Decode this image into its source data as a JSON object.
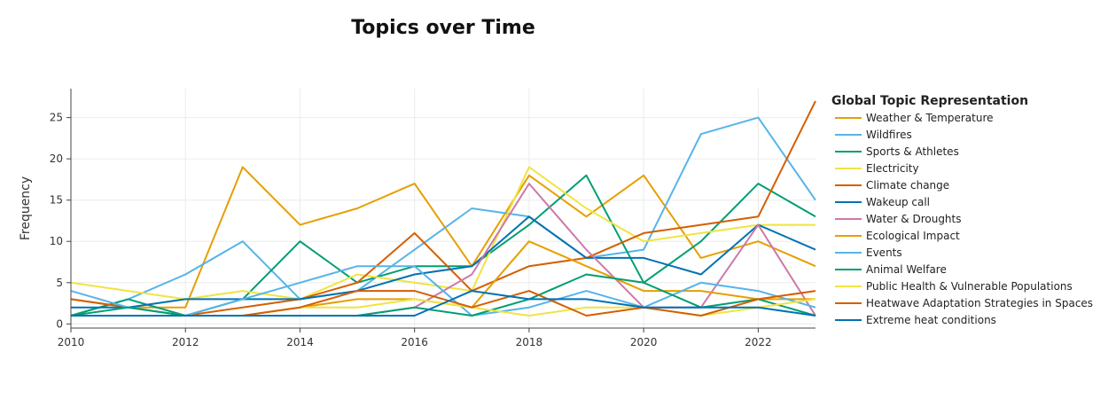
{
  "chart_data": {
    "type": "line",
    "title": "Topics over Time",
    "xlabel": "",
    "ylabel": "Frequency",
    "xlim": [
      2010,
      2023
    ],
    "ylim": [
      -0.5,
      28.5
    ],
    "x_ticks": [
      2010,
      2012,
      2014,
      2016,
      2018,
      2020,
      2022
    ],
    "y_ticks": [
      0,
      5,
      10,
      15,
      20,
      25
    ],
    "grid": true,
    "legend_title": "Global Topic Representation",
    "legend_position": "right",
    "series": [
      {
        "name": "Weather & Temperature",
        "color": "#E69F00",
        "x": [
          2010,
          2011,
          2012,
          2013,
          2014,
          2015,
          2016,
          2017,
          2018,
          2019,
          2020,
          2021,
          2022,
          2023
        ],
        "values": [
          3,
          2,
          2,
          19,
          12,
          14,
          17,
          7,
          18,
          13,
          18,
          8,
          10,
          7
        ]
      },
      {
        "name": "Wildfires",
        "color": "#56B4E9",
        "x": [
          2010,
          2011,
          2012,
          2013,
          2014,
          2015,
          2016,
          2017,
          2018,
          2019,
          2020,
          2021,
          2022,
          2023
        ],
        "values": [
          1,
          3,
          6,
          10,
          3,
          4,
          9,
          14,
          13,
          8,
          9,
          23,
          25,
          15
        ]
      },
      {
        "name": "Sports & Athletes",
        "color": "#009E73",
        "x": [
          2010,
          2011,
          2012,
          2013,
          2014,
          2015,
          2016,
          2017,
          2018,
          2019,
          2020,
          2021,
          2022,
          2023
        ],
        "values": [
          1,
          3,
          1,
          3,
          10,
          5,
          7,
          7,
          12,
          18,
          5,
          10,
          17,
          13
        ]
      },
      {
        "name": "Electricity",
        "color": "#F0E442",
        "x": [
          2010,
          2011,
          2012,
          2013,
          2014,
          2015,
          2016,
          2017,
          2018,
          2019,
          2020,
          2021,
          2022,
          2023
        ],
        "values": [
          5,
          4,
          3,
          4,
          3,
          6,
          5,
          4,
          19,
          14,
          10,
          11,
          12,
          12
        ]
      },
      {
        "name": "Climate change",
        "color": "#D55E00",
        "x": [
          2010,
          2011,
          2012,
          2013,
          2014,
          2015,
          2016,
          2017,
          2018,
          2019,
          2020,
          2021,
          2022,
          2023
        ],
        "values": [
          3,
          2,
          1,
          2,
          3,
          5,
          11,
          4,
          7,
          8,
          11,
          12,
          13,
          27
        ]
      },
      {
        "name": "Wakeup call",
        "color": "#0072B2",
        "x": [
          2010,
          2011,
          2012,
          2013,
          2014,
          2015,
          2016,
          2017,
          2018,
          2019,
          2020,
          2021,
          2022,
          2023
        ],
        "values": [
          2,
          2,
          3,
          3,
          3,
          4,
          6,
          7,
          13,
          8,
          8,
          6,
          12,
          9
        ]
      },
      {
        "name": "Water & Droughts",
        "color": "#CC79A7",
        "x": [
          2010,
          2011,
          2012,
          2013,
          2014,
          2015,
          2016,
          2017,
          2018,
          2019,
          2020,
          2021,
          2022,
          2023
        ],
        "values": [
          1,
          1,
          1,
          1,
          1,
          1,
          2,
          6,
          17,
          9,
          2,
          2,
          12,
          1
        ]
      },
      {
        "name": "Ecological Impact",
        "color": "#E69F00",
        "x": [
          2010,
          2011,
          2012,
          2013,
          2014,
          2015,
          2016,
          2017,
          2018,
          2019,
          2020,
          2021,
          2022,
          2023
        ],
        "values": [
          1,
          1,
          1,
          1,
          2,
          3,
          3,
          2,
          10,
          7,
          4,
          4,
          3,
          3
        ]
      },
      {
        "name": "Events",
        "color": "#56B4E9",
        "x": [
          2010,
          2011,
          2012,
          2013,
          2014,
          2015,
          2016,
          2017,
          2018,
          2019,
          2020,
          2021,
          2022,
          2023
        ],
        "values": [
          4,
          2,
          1,
          3,
          5,
          7,
          7,
          1,
          2,
          4,
          2,
          5,
          4,
          2
        ]
      },
      {
        "name": "Animal Welfare",
        "color": "#009E73",
        "x": [
          2010,
          2011,
          2012,
          2013,
          2014,
          2015,
          2016,
          2017,
          2018,
          2019,
          2020,
          2021,
          2022,
          2023
        ],
        "values": [
          1,
          2,
          1,
          1,
          1,
          1,
          2,
          1,
          3,
          6,
          5,
          2,
          3,
          1
        ]
      },
      {
        "name": "Public Health & Vulnerable Populations",
        "color": "#F0E442",
        "x": [
          2010,
          2011,
          2012,
          2013,
          2014,
          2015,
          2016,
          2017,
          2018,
          2019,
          2020,
          2021,
          2022,
          2023
        ],
        "values": [
          1,
          1,
          1,
          1,
          2,
          2,
          3,
          2,
          1,
          2,
          2,
          1,
          2,
          3
        ]
      },
      {
        "name": "Heatwave Adaptation Strategies in Spaces",
        "color": "#D55E00",
        "x": [
          2010,
          2011,
          2012,
          2013,
          2014,
          2015,
          2016,
          2017,
          2018,
          2019,
          2020,
          2021,
          2022,
          2023
        ],
        "values": [
          1,
          1,
          1,
          1,
          2,
          4,
          4,
          2,
          4,
          1,
          2,
          1,
          3,
          4
        ]
      },
      {
        "name": "Extreme heat conditions",
        "color": "#0072B2",
        "x": [
          2010,
          2011,
          2012,
          2013,
          2014,
          2015,
          2016,
          2017,
          2018,
          2019,
          2020,
          2021,
          2022,
          2023
        ],
        "values": [
          1,
          1,
          1,
          1,
          1,
          1,
          1,
          4,
          3,
          3,
          2,
          2,
          2,
          1
        ]
      }
    ]
  }
}
